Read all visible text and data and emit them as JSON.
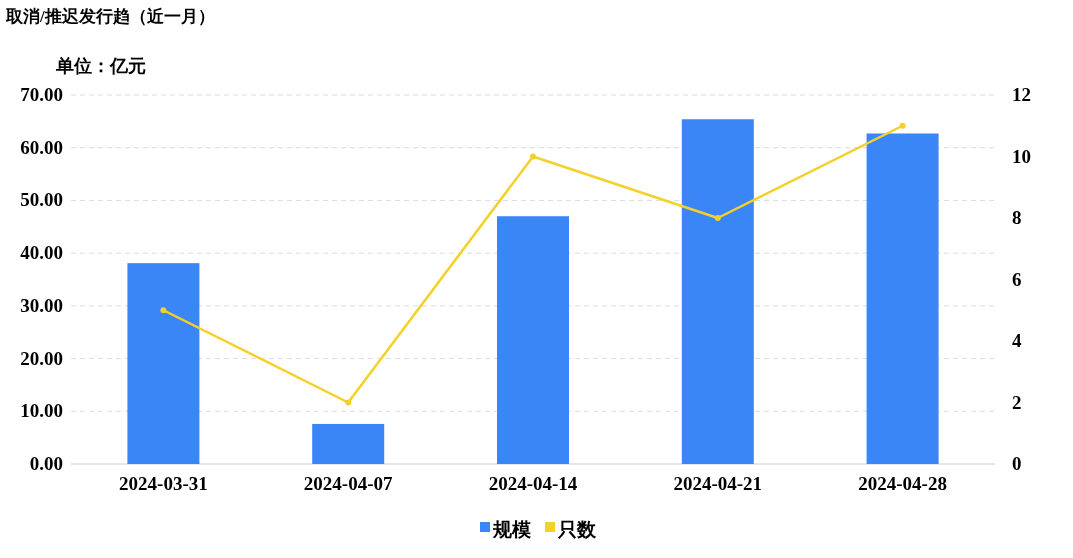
{
  "chart_data": {
    "type": "bar",
    "title": "取消/推迟发行趋（近一月）",
    "ylabel": "单位：亿元",
    "categories": [
      "2024-03-31",
      "2024-04-07",
      "2024-04-14",
      "2024-04-21",
      "2024-04-28"
    ],
    "series": [
      {
        "name": "规模",
        "color": "#3a86f7",
        "values": [
          38.1,
          7.6,
          47.0,
          65.4,
          62.7
        ]
      },
      {
        "name": "只数",
        "type": "line",
        "axis": "y2",
        "color": "#f5cf2a",
        "marker": "circle",
        "values": [
          5,
          2,
          10,
          8,
          11
        ]
      }
    ],
    "ylim": [
      0,
      70
    ],
    "yticks": [
      {
        "value": 0,
        "label": "0.00"
      },
      {
        "value": 10,
        "label": "10.00"
      },
      {
        "value": 20,
        "label": "20.00"
      },
      {
        "value": 30,
        "label": "30.00"
      },
      {
        "value": 40,
        "label": "40.00"
      },
      {
        "value": 50,
        "label": "50.00"
      },
      {
        "value": 60,
        "label": "60.00"
      },
      {
        "value": 70,
        "label": "70.00"
      }
    ],
    "y2lim": [
      0,
      12
    ],
    "y2ticks": [
      0,
      2,
      4,
      6,
      8,
      10,
      12
    ],
    "grid": "y",
    "legend": "bottom"
  }
}
